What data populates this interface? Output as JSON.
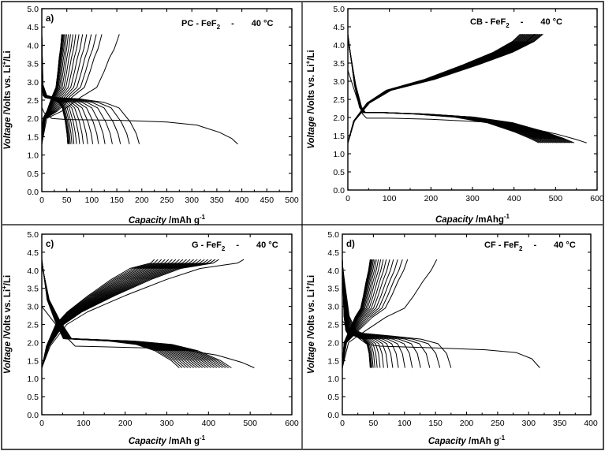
{
  "chart_data": [
    {
      "type": "line",
      "panel": "a)",
      "title": "PC - FeF2 - 40 °C",
      "title_parts": {
        "material": "PC - FeF",
        "subscript": "2",
        "separator": "-",
        "temperature": "40 °C"
      },
      "xlabel": {
        "italic": "Capacity",
        "rest": " /mAh g",
        "sup": "-1"
      },
      "ylabel": {
        "italic": "Voltage",
        "rest": " /Volts vs. Li",
        "sup": "+",
        "tail": "/Li"
      },
      "xlim": [
        0,
        500
      ],
      "ylim": [
        0,
        5.0
      ],
      "x_ticks": [
        "0",
        "50",
        "100",
        "150",
        "200",
        "250",
        "300",
        "350",
        "400",
        "450",
        "500"
      ],
      "y_ticks": [
        "0.0",
        "0.5",
        "1.0",
        "1.5",
        "2.0",
        "2.5",
        "3.0",
        "3.5",
        "4.0",
        "4.5",
        "5.0"
      ],
      "cycles": {
        "count": 20,
        "fade": "sharp",
        "first_discharge": [
          [
            0,
            2.3
          ],
          [
            5,
            2.15
          ],
          [
            20,
            2.0
          ],
          [
            50,
            1.97
          ],
          [
            150,
            1.95
          ],
          [
            250,
            1.9
          ],
          [
            310,
            1.82
          ],
          [
            355,
            1.62
          ],
          [
            380,
            1.45
          ],
          [
            392,
            1.3
          ]
        ],
        "first_charge": [
          [
            0,
            1.3
          ],
          [
            10,
            2.0
          ],
          [
            40,
            2.2
          ],
          [
            80,
            2.6
          ],
          [
            110,
            2.85
          ],
          [
            125,
            3.3
          ],
          [
            135,
            3.65
          ],
          [
            145,
            3.9
          ],
          [
            155,
            4.3
          ]
        ],
        "discharge_start_v": 4.3,
        "discharge_end_v": 1.3,
        "charge_start_v": 1.3,
        "charge_end_v": 4.3,
        "second_discharge_capacity": 195,
        "last_discharge_capacity": 52,
        "second_charge_capacity": 120,
        "last_charge_capacity": 40
      }
    },
    {
      "type": "line",
      "panel": "",
      "title": "CB - FeF2 - 40 °C",
      "title_parts": {
        "material": "CB - FeF",
        "subscript": "2",
        "separator": "-",
        "temperature": "40 °C"
      },
      "xlabel": {
        "italic": "Capacity",
        "rest": " /mAhg",
        "sup": "-1"
      },
      "ylabel": {
        "italic": "Voltage",
        "rest": " /Volts vs. Li",
        "sup": "+",
        "tail": "/Li"
      },
      "xlim": [
        0,
        600
      ],
      "ylim": [
        0,
        5.0
      ],
      "x_ticks": [
        "0",
        "100",
        "200",
        "300",
        "400",
        "500",
        "600"
      ],
      "y_ticks": [
        "0.0",
        "0.5",
        "1.0",
        "1.5",
        "2.0",
        "2.5",
        "3.0",
        "3.5",
        "4.0",
        "4.5",
        "5.0"
      ],
      "cycles": {
        "count": 20,
        "fade": "gradual",
        "first_discharge": [
          [
            0,
            3.3
          ],
          [
            20,
            2.6
          ],
          [
            35,
            2.1
          ],
          [
            45,
            1.98
          ],
          [
            100,
            1.98
          ],
          [
            200,
            1.95
          ],
          [
            320,
            1.88
          ],
          [
            420,
            1.75
          ],
          [
            500,
            1.55
          ],
          [
            548,
            1.4
          ],
          [
            575,
            1.3
          ]
        ],
        "first_charge": [
          [
            0,
            1.3
          ],
          [
            15,
            1.9
          ],
          [
            50,
            2.4
          ],
          [
            100,
            2.75
          ],
          [
            200,
            3.05
          ],
          [
            300,
            3.45
          ],
          [
            380,
            3.8
          ],
          [
            430,
            4.1
          ],
          [
            450,
            4.3
          ]
        ],
        "discharge_start_v": 4.3,
        "discharge_end_v": 1.3,
        "charge_start_v": 1.3,
        "charge_end_v": 4.3,
        "second_discharge_capacity": 545,
        "last_discharge_capacity": 460,
        "second_charge_capacity": 470,
        "last_charge_capacity": 415
      }
    },
    {
      "type": "line",
      "panel": "c)",
      "title": "G - FeF2 - 40 °C",
      "title_parts": {
        "material": "G - FeF",
        "subscript": "2",
        "separator": "-",
        "temperature": "40 °C"
      },
      "xlabel": {
        "italic": "Capacity",
        "rest": " /mAh g",
        "sup": "-1"
      },
      "ylabel": {
        "italic": "Voltage",
        "rest": " /Volts vs. Li",
        "sup": "+",
        "tail": "/Li"
      },
      "xlim": [
        0,
        600
      ],
      "ylim": [
        0,
        5.0
      ],
      "x_ticks": [
        "0",
        "100",
        "200",
        "300",
        "400",
        "500",
        "600"
      ],
      "y_ticks": [
        "0.0",
        "0.5",
        "1.0",
        "1.5",
        "2.0",
        "2.5",
        "3.0",
        "3.5",
        "4.0",
        "4.5",
        "5.0"
      ],
      "cycles": {
        "count": 20,
        "fade": "gradual",
        "first_discharge": [
          [
            0,
            3.0
          ],
          [
            20,
            2.7
          ],
          [
            50,
            2.25
          ],
          [
            80,
            1.9
          ],
          [
            150,
            1.88
          ],
          [
            250,
            1.85
          ],
          [
            350,
            1.78
          ],
          [
            420,
            1.65
          ],
          [
            480,
            1.45
          ],
          [
            510,
            1.3
          ]
        ],
        "first_charge": [
          [
            0,
            1.3
          ],
          [
            20,
            1.9
          ],
          [
            60,
            2.5
          ],
          [
            110,
            2.85
          ],
          [
            200,
            3.3
          ],
          [
            300,
            3.75
          ],
          [
            380,
            4.05
          ],
          [
            440,
            4.15
          ],
          [
            470,
            4.2
          ],
          [
            485,
            4.3
          ]
        ],
        "discharge_start_v": 4.3,
        "discharge_end_v": 1.3,
        "charge_start_v": 1.3,
        "charge_end_v": 4.3,
        "second_discharge_capacity": 455,
        "last_discharge_capacity": 330,
        "second_charge_capacity": 425,
        "last_charge_capacity": 270
      }
    },
    {
      "type": "line",
      "panel": "d)",
      "title": "CF - FeF2 - 40 °C",
      "title_parts": {
        "material": "CF - FeF",
        "subscript": "2",
        "separator": "-",
        "temperature": "40 °C"
      },
      "xlabel": {
        "italic": "Capacity",
        "rest": " /mAh g",
        "sup": "-1"
      },
      "ylabel": {
        "italic": "Voltage",
        "rest": " /Volts vs. Li",
        "sup": "+",
        "tail": "/Li"
      },
      "xlim": [
        0,
        400
      ],
      "ylim": [
        0,
        5.0
      ],
      "x_ticks": [
        "0",
        "50",
        "100",
        "150",
        "200",
        "250",
        "300",
        "350",
        "400"
      ],
      "y_ticks": [
        "0.0",
        "0.5",
        "1.0",
        "1.5",
        "2.0",
        "2.5",
        "3.0",
        "3.5",
        "4.0",
        "4.5",
        "5.0"
      ],
      "cycles": {
        "count": 20,
        "fade": "sharp",
        "first_discharge": [
          [
            0,
            2.6
          ],
          [
            20,
            2.2
          ],
          [
            40,
            1.95
          ],
          [
            60,
            1.9
          ],
          [
            150,
            1.85
          ],
          [
            230,
            1.8
          ],
          [
            280,
            1.72
          ],
          [
            305,
            1.55
          ],
          [
            318,
            1.3
          ]
        ],
        "first_charge": [
          [
            0,
            1.3
          ],
          [
            10,
            2.0
          ],
          [
            35,
            2.3
          ],
          [
            70,
            2.7
          ],
          [
            100,
            2.95
          ],
          [
            115,
            3.3
          ],
          [
            130,
            3.7
          ],
          [
            143,
            4.0
          ],
          [
            152,
            4.3
          ]
        ],
        "discharge_start_v": 4.3,
        "discharge_end_v": 1.3,
        "charge_start_v": 1.3,
        "charge_end_v": 4.3,
        "second_discharge_capacity": 175,
        "last_discharge_capacity": 45,
        "second_charge_capacity": 105,
        "last_charge_capacity": 45
      }
    }
  ]
}
